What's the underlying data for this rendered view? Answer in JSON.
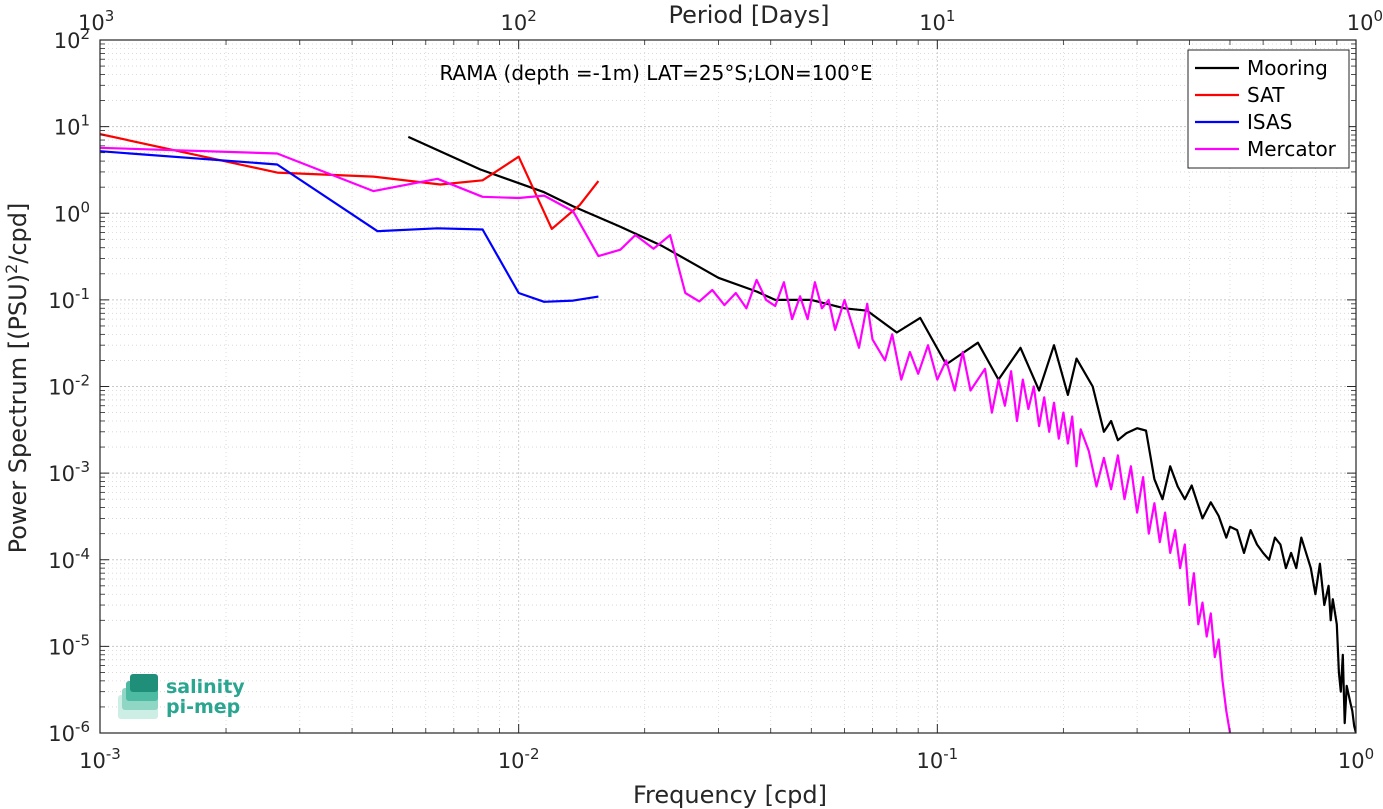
{
  "chart_data": {
    "type": "line",
    "title": "RAMA (depth =-1m) LAT=25°S;LON=100°E",
    "xlabel": "Frequency [cpd]",
    "x2label": "Period [Days]",
    "ylabel_parts": [
      "Power Spectrum [(PSU)",
      "2",
      "/cpd]"
    ],
    "xscale": "log",
    "yscale": "log",
    "xlim": [
      0.001,
      1
    ],
    "ylim": [
      1e-06,
      100
    ],
    "grid": true,
    "legend_position": "top-right",
    "x_ticks": [
      {
        "value": 0.001,
        "base": "10",
        "exp": "-3"
      },
      {
        "value": 0.01,
        "base": "10",
        "exp": "-2"
      },
      {
        "value": 0.1,
        "base": "10",
        "exp": "-1"
      },
      {
        "value": 1,
        "base": "10",
        "exp": "0"
      }
    ],
    "x2_ticks": [
      {
        "value": 0.001,
        "base": "10",
        "exp": "3"
      },
      {
        "value": 0.01,
        "base": "10",
        "exp": "2"
      },
      {
        "value": 0.1,
        "base": "10",
        "exp": "1"
      },
      {
        "value": 1,
        "base": "10",
        "exp": "0"
      }
    ],
    "y_ticks": [
      {
        "value": 100,
        "base": "10",
        "exp": "2"
      },
      {
        "value": 10,
        "base": "10",
        "exp": "1"
      },
      {
        "value": 1,
        "base": "10",
        "exp": "0"
      },
      {
        "value": 0.1,
        "base": "10",
        "exp": "-1"
      },
      {
        "value": 0.01,
        "base": "10",
        "exp": "-2"
      },
      {
        "value": 0.001,
        "base": "10",
        "exp": "-3"
      },
      {
        "value": 0.0001,
        "base": "10",
        "exp": "-4"
      },
      {
        "value": 1e-05,
        "base": "10",
        "exp": "-5"
      },
      {
        "value": 1e-06,
        "base": "10",
        "exp": "-6"
      }
    ],
    "series": [
      {
        "name": "Mooring",
        "color": "#000000",
        "points": [
          [
            0.00545,
            7.6
          ],
          [
            0.0081,
            3.2
          ],
          [
            0.0115,
            1.75
          ],
          [
            0.0135,
            1.2
          ],
          [
            0.0175,
            0.7
          ],
          [
            0.022,
            0.42
          ],
          [
            0.027,
            0.24
          ],
          [
            0.03,
            0.18
          ],
          [
            0.037,
            0.125
          ],
          [
            0.041,
            0.1
          ],
          [
            0.05,
            0.1
          ],
          [
            0.06,
            0.08
          ],
          [
            0.068,
            0.075
          ],
          [
            0.08,
            0.042
          ],
          [
            0.091,
            0.062
          ],
          [
            0.105,
            0.018
          ],
          [
            0.125,
            0.032
          ],
          [
            0.14,
            0.012
          ],
          [
            0.158,
            0.028
          ],
          [
            0.175,
            0.009
          ],
          [
            0.19,
            0.03
          ],
          [
            0.205,
            0.008
          ],
          [
            0.215,
            0.021
          ],
          [
            0.235,
            0.01
          ],
          [
            0.25,
            0.003
          ],
          [
            0.26,
            0.004
          ],
          [
            0.27,
            0.0024
          ],
          [
            0.283,
            0.0029
          ],
          [
            0.3,
            0.0033
          ],
          [
            0.315,
            0.0031
          ],
          [
            0.33,
            0.00085
          ],
          [
            0.345,
            0.0005
          ],
          [
            0.36,
            0.0012
          ],
          [
            0.375,
            0.0007
          ],
          [
            0.39,
            0.0005
          ],
          [
            0.405,
            0.00072
          ],
          [
            0.43,
            0.0003
          ],
          [
            0.45,
            0.00046
          ],
          [
            0.47,
            0.00032
          ],
          [
            0.49,
            0.00018
          ],
          [
            0.5,
            0.00024
          ],
          [
            0.52,
            0.00022
          ],
          [
            0.54,
            0.00012
          ],
          [
            0.56,
            0.00022
          ],
          [
            0.58,
            0.00015
          ],
          [
            0.6,
            0.00012
          ],
          [
            0.62,
            0.0001
          ],
          [
            0.64,
            0.00018
          ],
          [
            0.66,
            0.00015
          ],
          [
            0.68,
            8e-05
          ],
          [
            0.7,
            0.00012
          ],
          [
            0.72,
            8e-05
          ],
          [
            0.74,
            0.00018
          ],
          [
            0.76,
            0.00012
          ],
          [
            0.78,
            8e-05
          ],
          [
            0.8,
            4e-05
          ],
          [
            0.82,
            9e-05
          ],
          [
            0.84,
            3e-05
          ],
          [
            0.86,
            5e-05
          ],
          [
            0.87,
            2e-05
          ],
          [
            0.88,
            3.5e-05
          ],
          [
            0.9,
            1.8e-05
          ],
          [
            0.91,
            5e-06
          ],
          [
            0.92,
            3e-06
          ],
          [
            0.93,
            8e-06
          ],
          [
            0.94,
            1.3e-06
          ],
          [
            0.95,
            3.5e-06
          ],
          [
            0.97,
            2.2e-06
          ],
          [
            0.98,
            1.8e-06
          ],
          [
            0.99,
            1.2e-06
          ],
          [
            1.0,
            1e-06
          ]
        ]
      },
      {
        "name": "SAT",
        "color": "#ff0000",
        "points": [
          [
            0.001,
            8.2
          ],
          [
            0.00265,
            2.95
          ],
          [
            0.0045,
            2.65
          ],
          [
            0.0065,
            2.15
          ],
          [
            0.0082,
            2.4
          ],
          [
            0.01,
            4.5
          ],
          [
            0.012,
            0.66
          ],
          [
            0.014,
            1.25
          ],
          [
            0.0155,
            2.35
          ]
        ]
      },
      {
        "name": "ISAS",
        "color": "#0000ff",
        "points": [
          [
            0.001,
            5.2
          ],
          [
            0.00265,
            3.65
          ],
          [
            0.0046,
            0.62
          ],
          [
            0.0064,
            0.67
          ],
          [
            0.0082,
            0.65
          ],
          [
            0.01,
            0.12
          ],
          [
            0.0115,
            0.095
          ],
          [
            0.0135,
            0.098
          ],
          [
            0.0155,
            0.109
          ]
        ]
      },
      {
        "name": "Mercator",
        "color": "#ff00ff",
        "points": [
          [
            0.001,
            5.7
          ],
          [
            0.00265,
            4.9
          ],
          [
            0.0045,
            1.8
          ],
          [
            0.0064,
            2.5
          ],
          [
            0.0082,
            1.55
          ],
          [
            0.01,
            1.5
          ],
          [
            0.0115,
            1.6
          ],
          [
            0.0135,
            1.05
          ],
          [
            0.0155,
            0.32
          ],
          [
            0.0175,
            0.38
          ],
          [
            0.019,
            0.56
          ],
          [
            0.021,
            0.39
          ],
          [
            0.023,
            0.56
          ],
          [
            0.025,
            0.12
          ],
          [
            0.027,
            0.096
          ],
          [
            0.029,
            0.13
          ],
          [
            0.031,
            0.087
          ],
          [
            0.033,
            0.12
          ],
          [
            0.035,
            0.08
          ],
          [
            0.037,
            0.17
          ],
          [
            0.039,
            0.1
          ],
          [
            0.041,
            0.085
          ],
          [
            0.043,
            0.16
          ],
          [
            0.045,
            0.06
          ],
          [
            0.047,
            0.11
          ],
          [
            0.049,
            0.06
          ],
          [
            0.051,
            0.16
          ],
          [
            0.053,
            0.08
          ],
          [
            0.055,
            0.1
          ],
          [
            0.057,
            0.045
          ],
          [
            0.06,
            0.1
          ],
          [
            0.062,
            0.06
          ],
          [
            0.065,
            0.028
          ],
          [
            0.068,
            0.09
          ],
          [
            0.07,
            0.035
          ],
          [
            0.075,
            0.02
          ],
          [
            0.078,
            0.04
          ],
          [
            0.082,
            0.012
          ],
          [
            0.086,
            0.025
          ],
          [
            0.09,
            0.014
          ],
          [
            0.095,
            0.03
          ],
          [
            0.1,
            0.012
          ],
          [
            0.105,
            0.02
          ],
          [
            0.11,
            0.009
          ],
          [
            0.115,
            0.025
          ],
          [
            0.12,
            0.009
          ],
          [
            0.13,
            0.016
          ],
          [
            0.135,
            0.005
          ],
          [
            0.14,
            0.012
          ],
          [
            0.145,
            0.006
          ],
          [
            0.15,
            0.015
          ],
          [
            0.155,
            0.004
          ],
          [
            0.16,
            0.012
          ],
          [
            0.165,
            0.0055
          ],
          [
            0.17,
            0.01
          ],
          [
            0.175,
            0.0035
          ],
          [
            0.18,
            0.0075
          ],
          [
            0.185,
            0.003
          ],
          [
            0.19,
            0.0065
          ],
          [
            0.195,
            0.0025
          ],
          [
            0.2,
            0.005
          ],
          [
            0.205,
            0.0022
          ],
          [
            0.21,
            0.0045
          ],
          [
            0.215,
            0.0012
          ],
          [
            0.22,
            0.0032
          ],
          [
            0.23,
            0.0018
          ],
          [
            0.24,
            0.0007
          ],
          [
            0.25,
            0.0015
          ],
          [
            0.26,
            0.00065
          ],
          [
            0.27,
            0.0016
          ],
          [
            0.28,
            0.0005
          ],
          [
            0.29,
            0.0012
          ],
          [
            0.3,
            0.00035
          ],
          [
            0.31,
            0.0009
          ],
          [
            0.32,
            0.0002
          ],
          [
            0.33,
            0.00045
          ],
          [
            0.34,
            0.00016
          ],
          [
            0.35,
            0.00035
          ],
          [
            0.36,
            0.00012
          ],
          [
            0.37,
            0.00022
          ],
          [
            0.38,
            8e-05
          ],
          [
            0.39,
            0.00015
          ],
          [
            0.4,
            3e-05
          ],
          [
            0.41,
            7e-05
          ],
          [
            0.42,
            1.8e-05
          ],
          [
            0.43,
            3.2e-05
          ],
          [
            0.44,
            1.3e-05
          ],
          [
            0.45,
            2.4e-05
          ],
          [
            0.46,
            7.5e-06
          ],
          [
            0.47,
            1.2e-05
          ],
          [
            0.48,
            4e-06
          ],
          [
            0.49,
            1.8e-06
          ],
          [
            0.5,
            1e-06
          ]
        ]
      }
    ]
  }
}
